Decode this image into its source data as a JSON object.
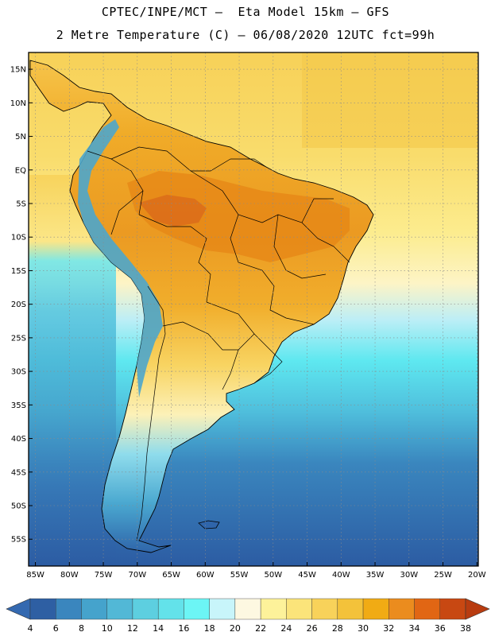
{
  "header": {
    "line1": "CPTEC/INPE/MCT –  Eta Model 15km – GFS",
    "line2": "2 Metre Temperature (C) – 06/08/2020 12UTC fct=99h"
  },
  "map": {
    "lon_range": [
      -86,
      -19.8
    ],
    "lat_range": [
      -59,
      17.5
    ],
    "lat_ticks": [
      "15N",
      "10N",
      "5N",
      "EQ",
      "5S",
      "10S",
      "15S",
      "20S",
      "25S",
      "30S",
      "35S",
      "40S",
      "45S",
      "50S",
      "55S"
    ],
    "lat_values": [
      15,
      10,
      5,
      0,
      -5,
      -10,
      -15,
      -20,
      -25,
      -30,
      -35,
      -40,
      -45,
      -50,
      -55
    ],
    "lon_ticks": [
      "85W",
      "80W",
      "75W",
      "70W",
      "65W",
      "60W",
      "55W",
      "50W",
      "45W",
      "40W",
      "35W",
      "30W",
      "25W",
      "20W"
    ],
    "lon_values": [
      -85,
      -80,
      -75,
      -70,
      -65,
      -60,
      -55,
      -50,
      -45,
      -40,
      -35,
      -30,
      -25,
      -20
    ]
  },
  "colorbar": {
    "labels": [
      "4",
      "6",
      "8",
      "10",
      "12",
      "14",
      "16",
      "18",
      "20",
      "22",
      "24",
      "26",
      "28",
      "30",
      "32",
      "34",
      "36",
      "38"
    ],
    "under_color": "#3469b0",
    "over_color": "#b83c10",
    "colors": [
      "#2e5fa3",
      "#3a86be",
      "#45a3cc",
      "#52b8d6",
      "#5dcfe0",
      "#63e2ea",
      "#6cf5f5",
      "#c8f5fa",
      "#fdf8e1",
      "#fdf29a",
      "#fbe47a",
      "#f8d25a",
      "#f3c23a",
      "#f1ab14",
      "#eb8c1e",
      "#e16614",
      "#c84812"
    ]
  },
  "colors": {
    "ocean_cold": "#2f62a8",
    "ocean_mid": "#48aad0",
    "ocean_cyan": "#5ee8f0",
    "ocean_warm": "#fbe27a",
    "land_hot": "#ec9a26",
    "land_warm": "#f4bc3a",
    "andes": "#4da6cc"
  }
}
